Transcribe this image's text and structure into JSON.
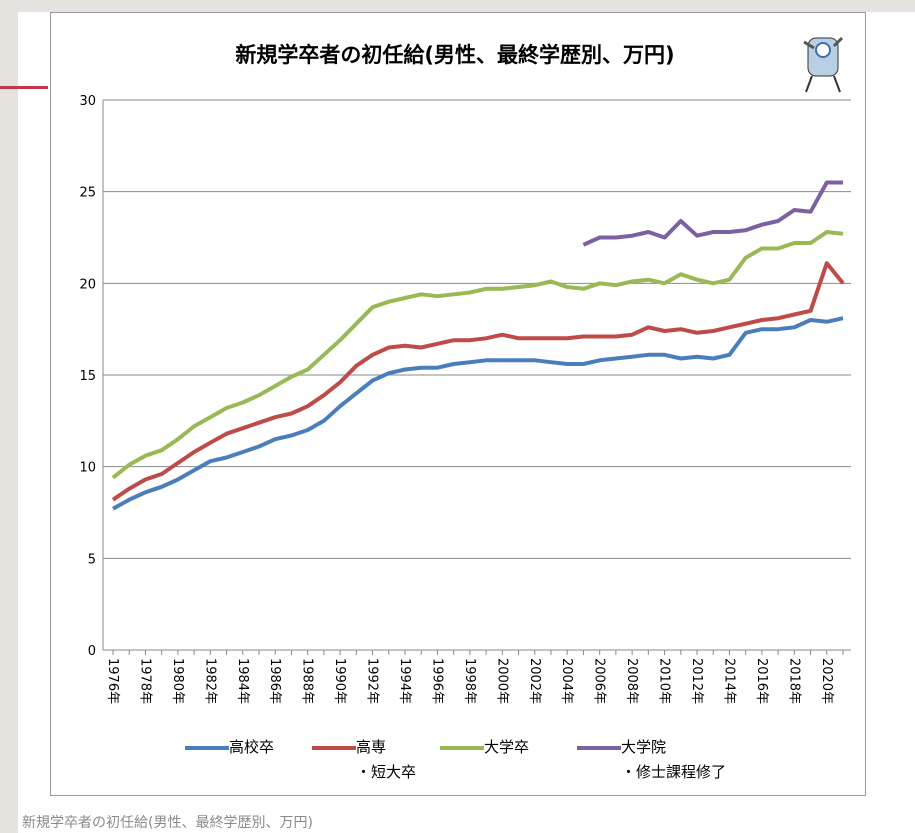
{
  "chart_data": {
    "type": "line",
    "title": "新規学卒者の初任給(男性、最終学歴別、万円)",
    "categories": [
      "1976年",
      null,
      "1978年",
      null,
      "1980年",
      null,
      "1982年",
      null,
      "1984年",
      null,
      "1986年",
      null,
      "1988年",
      null,
      "1990年",
      null,
      "1992年",
      null,
      "1994年",
      null,
      "1996年",
      null,
      "1998年",
      null,
      "2000年",
      null,
      "2002年",
      null,
      "2004年",
      null,
      "2006年",
      null,
      "2008年",
      null,
      "2010年",
      null,
      "2012年",
      null,
      "2014年",
      null,
      "2016年",
      null,
      "2018年",
      null,
      "2020年",
      null
    ],
    "series": [
      {
        "name": "高校卒",
        "color": "#4a7ebb",
        "values": [
          7.7,
          8.2,
          8.6,
          8.9,
          9.3,
          9.8,
          10.3,
          10.5,
          10.8,
          11.1,
          11.5,
          11.7,
          12.0,
          12.5,
          13.3,
          14.0,
          14.7,
          15.1,
          15.3,
          15.4,
          15.4,
          15.6,
          15.7,
          15.8,
          15.8,
          15.8,
          15.8,
          15.7,
          15.6,
          15.6,
          15.8,
          15.9,
          16.0,
          16.1,
          16.1,
          15.9,
          16.0,
          15.9,
          16.1,
          17.3,
          17.5,
          17.5,
          17.6,
          18.0,
          17.9,
          18.1
        ]
      },
      {
        "name": "高専\n・短大卒",
        "color": "#be4b48",
        "values": [
          8.2,
          8.8,
          9.3,
          9.6,
          10.2,
          10.8,
          11.3,
          11.8,
          12.1,
          12.4,
          12.7,
          12.9,
          13.3,
          13.9,
          14.6,
          15.5,
          16.1,
          16.5,
          16.6,
          16.5,
          16.7,
          16.9,
          16.9,
          17.0,
          17.2,
          17.0,
          17.0,
          17.0,
          17.0,
          17.1,
          17.1,
          17.1,
          17.2,
          17.6,
          17.4,
          17.5,
          17.3,
          17.4,
          17.6,
          17.8,
          18.0,
          18.1,
          18.3,
          18.5,
          21.1,
          20.0
        ]
      },
      {
        "name": "大学卒",
        "color": "#98b954",
        "values": [
          9.4,
          10.1,
          10.6,
          10.9,
          11.5,
          12.2,
          12.7,
          13.2,
          13.5,
          13.9,
          14.4,
          14.9,
          15.3,
          16.1,
          16.9,
          17.8,
          18.7,
          19.0,
          19.2,
          19.4,
          19.3,
          19.4,
          19.5,
          19.7,
          19.7,
          19.8,
          19.9,
          20.1,
          19.8,
          19.7,
          20.0,
          19.9,
          20.1,
          20.2,
          20.0,
          20.5,
          20.2,
          20.0,
          20.2,
          21.4,
          21.9,
          21.9,
          22.2,
          22.2,
          22.8,
          22.7
        ]
      },
      {
        "name": "大学院\n・修士課程修了",
        "color": "#7d60a0",
        "values": [
          null,
          null,
          null,
          null,
          null,
          null,
          null,
          null,
          null,
          null,
          null,
          null,
          null,
          null,
          null,
          null,
          null,
          null,
          null,
          null,
          null,
          null,
          null,
          null,
          null,
          null,
          null,
          null,
          null,
          22.1,
          22.5,
          22.5,
          22.6,
          22.8,
          22.5,
          23.4,
          22.6,
          22.8,
          22.8,
          22.9,
          23.2,
          23.4,
          24.0,
          23.9,
          25.5,
          25.5
        ]
      }
    ],
    "ylim": [
      0,
      30
    ],
    "yticks": [
      0,
      5,
      10,
      15,
      20,
      25,
      30
    ],
    "grid": true
  },
  "caption": "新規学卒者の初任給(男性、最終学歴別、万円)"
}
